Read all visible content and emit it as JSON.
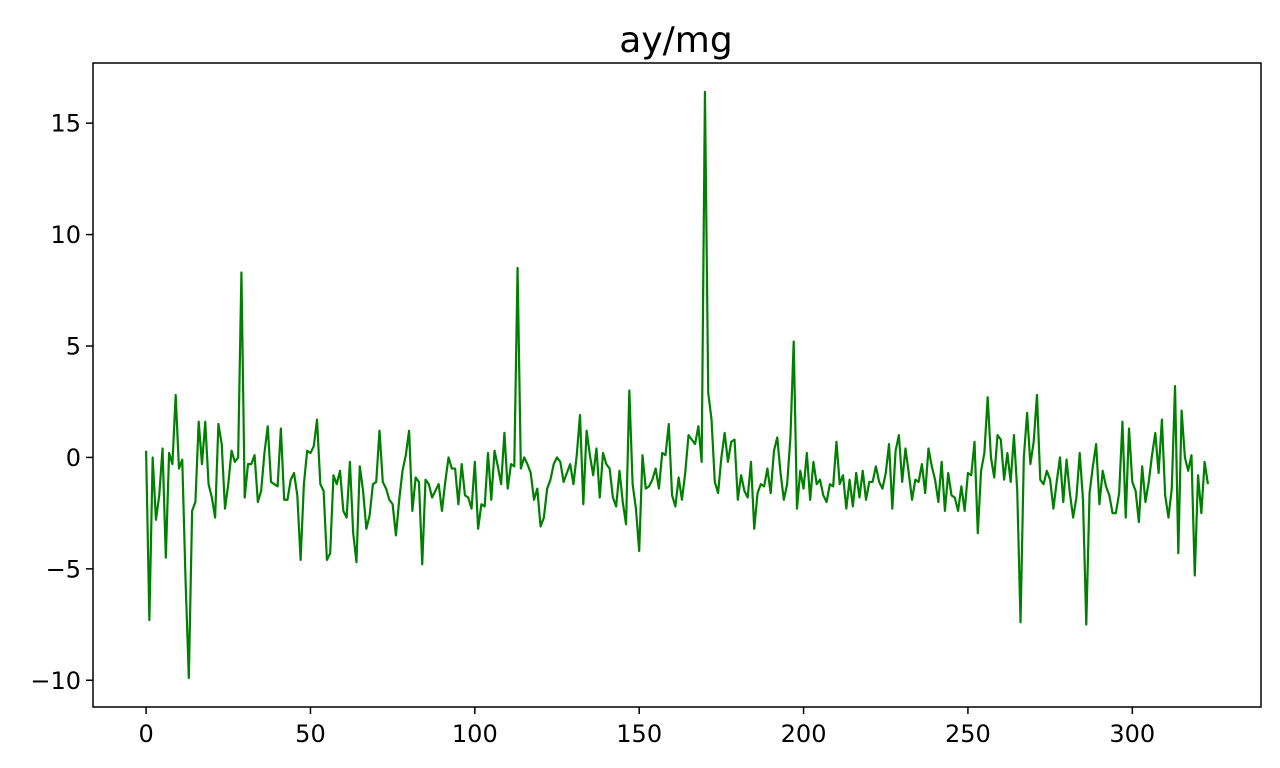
{
  "chart_data": {
    "type": "line",
    "title": "ay/mg",
    "xlabel": "",
    "ylabel": "",
    "xlim": [
      -16.15,
      339.15
    ],
    "ylim": [
      -11.2,
      17.7
    ],
    "grid": false,
    "x_ticks": [
      0,
      50,
      100,
      150,
      200,
      250,
      300
    ],
    "x_tick_labels": [
      "0",
      "50",
      "100",
      "150",
      "200",
      "250",
      "300"
    ],
    "y_ticks": [
      -10,
      -5,
      0,
      5,
      10,
      15
    ],
    "y_tick_labels": [
      "−10",
      "−5",
      "0",
      "5",
      "10",
      "15"
    ],
    "x_start": 0,
    "x_step": 1,
    "series": [
      {
        "color": "#008000",
        "values": [
          0.3,
          -7.3,
          0,
          -2.8,
          -1.7,
          0.4,
          -4.5,
          0.2,
          -0.3,
          2.8,
          -0.5,
          -0.1,
          -5.5,
          -9.9,
          -2.4,
          -2.0,
          1.6,
          -0.3,
          1.6,
          -1.2,
          -1.8,
          -2.7,
          1.5,
          0.6,
          -2.3,
          -1.2,
          0.3,
          -0.2,
          0.0,
          8.3,
          -1.8,
          -0.3,
          -0.3,
          0.1,
          -2.0,
          -1.5,
          0.2,
          1.4,
          -1.1,
          -1.2,
          -1.3,
          1.3,
          -1.9,
          -1.9,
          -1.0,
          -0.7,
          -1.7,
          -4.6,
          -1.2,
          0.3,
          0.2,
          0.5,
          1.7,
          -1.2,
          -1.5,
          -4.6,
          -4.3,
          -0.8,
          -1.2,
          -0.6,
          -2.4,
          -2.7,
          -0.2,
          -3.4,
          -4.7,
          -0.4,
          -1.5,
          -3.2,
          -2.6,
          -1.2,
          -1.1,
          1.2,
          -1.1,
          -1.4,
          -1.9,
          -2.1,
          -3.5,
          -1.9,
          -0.6,
          0.1,
          1.2,
          -2.4,
          -0.9,
          -1.1,
          -4.8,
          -1.0,
          -1.2,
          -1.8,
          -1.5,
          -1.2,
          -2.4,
          -1.1,
          0.0,
          -0.5,
          -0.5,
          -2.1,
          -0.3,
          -1.7,
          -1.8,
          -2.3,
          -0.2,
          -3.2,
          -2.1,
          -2.2,
          0.2,
          -1.9,
          0.3,
          -0.4,
          -1.2,
          1.1,
          -1.4,
          -0.3,
          -0.4,
          8.5,
          -0.5,
          0.0,
          -0.3,
          -0.7,
          -1.9,
          -1.4,
          -3.1,
          -2.7,
          -1.4,
          -1.0,
          -0.3,
          0.0,
          -0.2,
          -1.1,
          -0.7,
          -0.3,
          -1.2,
          0.1,
          1.9,
          -2.1,
          1.2,
          0.1,
          -0.8,
          0.4,
          -1.8,
          0.2,
          -0.3,
          -0.5,
          -1.8,
          -2.2,
          -0.6,
          -2.0,
          -3.0,
          3.0,
          -1.2,
          -2.3,
          -4.2,
          0.1,
          -1.4,
          -1.3,
          -1.0,
          -0.5,
          -1.4,
          0.2,
          0.1,
          1.5,
          -1.7,
          -2.2,
          -0.9,
          -1.9,
          -0.7,
          1.0,
          0.8,
          0.6,
          1.4,
          -0.2,
          16.4,
          2.9,
          1.7,
          -1.1,
          -1.6,
          0.0,
          1.1,
          -0.2,
          0.7,
          0.8,
          -1.9,
          -0.8,
          -1.5,
          -1.8,
          -0.2,
          -3.2,
          -1.6,
          -1.2,
          -1.3,
          -0.5,
          -1.6,
          0.3,
          0.9,
          -0.7,
          -1.9,
          -1.2,
          0.9,
          5.2,
          -2.3,
          -0.6,
          -1.4,
          0.2,
          -1.9,
          -0.2,
          -1.2,
          -1.0,
          -1.7,
          -2.0,
          -1.2,
          -1.3,
          0.7,
          -1.2,
          -0.8,
          -2.3,
          -1.0,
          -2.2,
          -0.7,
          -1.8,
          -0.6,
          -1.9,
          -1.1,
          -1.1,
          -0.4,
          -1.1,
          -1.4,
          -0.7,
          0.6,
          -2.3,
          0.3,
          1.0,
          -1.1,
          0.4,
          -0.7,
          -1.9,
          -1.0,
          -1.1,
          -0.3,
          -1.6,
          0.4,
          -0.4,
          -1.0,
          -2.0,
          -0.2,
          -2.4,
          -0.7,
          -1.7,
          -1.8,
          -2.4,
          -1.3,
          -2.4,
          -0.7,
          -0.8,
          0.7,
          -3.4,
          -0.6,
          0.2,
          2.7,
          0.0,
          -0.9,
          1.0,
          0.8,
          -1.0,
          0.2,
          -1.1,
          1.0,
          -1.5,
          -7.4,
          0.0,
          2.0,
          -0.3,
          0.7,
          2.8,
          -1.0,
          -1.2,
          -0.6,
          -1.0,
          -2.3,
          -1.1,
          0.0,
          -2.0,
          -0.1,
          -1.6,
          -2.7,
          -1.8,
          0.2,
          -1.9,
          -7.5,
          -1.6,
          -0.4,
          0.6,
          -2.1,
          -0.6,
          -1.3,
          -1.7,
          -2.5,
          -2.5,
          -1.6,
          1.6,
          -2.7,
          1.3,
          -1.1,
          -1.5,
          -2.9,
          -0.4,
          -2.0,
          -1.1,
          0.1,
          1.1,
          -0.7,
          1.7,
          -1.7,
          -2.7,
          -1.4,
          3.2,
          -4.3,
          2.1,
          0.0,
          -0.6,
          0.1,
          -5.3,
          -0.8,
          -2.5,
          -0.2,
          -1.2
        ]
      }
    ]
  }
}
